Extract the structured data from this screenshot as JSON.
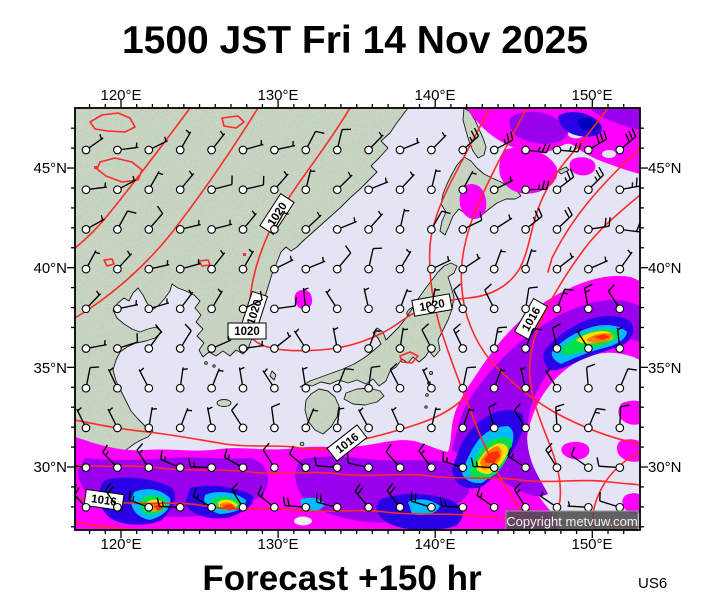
{
  "title": "1500 JST Fri 14 Nov 2025",
  "footer": {
    "forecast_label": "Forecast +150 hr",
    "model_label": "US6"
  },
  "map": {
    "copyright": "Copyright metvuw.com",
    "axes": {
      "top": [
        "120°E",
        "130°E",
        "140°E",
        "150°E"
      ],
      "bottom": [
        "120°E",
        "130°E",
        "140°E",
        "150°E"
      ],
      "left": [
        "45°N",
        "40°N",
        "35°N",
        "30°N"
      ],
      "right": [
        "45°N",
        "40°N",
        "35°N",
        "30°N"
      ]
    },
    "isobar_labels": [
      "1020",
      "1020",
      "1020",
      "1020",
      "1016",
      "1016",
      "1016"
    ],
    "colors": {
      "sea": "#E4E4F5",
      "land": "#CBD8C6",
      "coast": "#1a1a1a",
      "isobar": "#FF2A2A",
      "p_magenta": "#FF00FF",
      "p_purple": "#9900EE",
      "p_blue": "#2A00E6",
      "p_darkblue": "#0000BC",
      "p_cyan": "#00BCFF",
      "p_green": "#00E050",
      "p_yellow": "#FFE000",
      "p_orange": "#FF8000",
      "p_red": "#FF3000"
    }
  }
}
